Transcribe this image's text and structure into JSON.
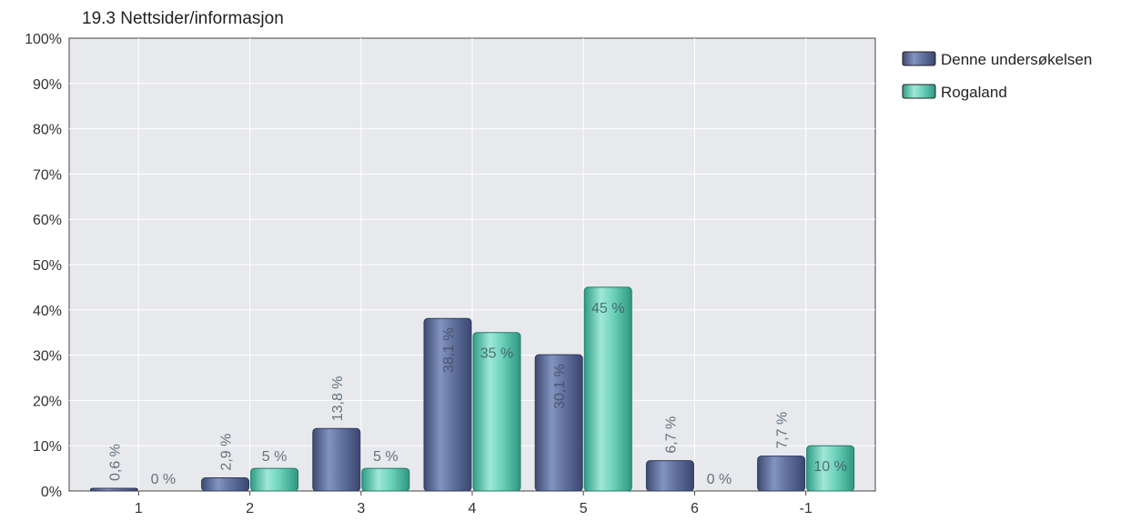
{
  "chart_data": {
    "type": "bar",
    "title": "19.3 Nettsider/informasjon",
    "categories": [
      "1",
      "2",
      "3",
      "4",
      "5",
      "6",
      "-1"
    ],
    "yticks": [
      "0%",
      "10%",
      "20%",
      "30%",
      "40%",
      "50%",
      "60%",
      "70%",
      "80%",
      "90%",
      "100%"
    ],
    "ylim": [
      0,
      100
    ],
    "grid": true,
    "legend_position": "right",
    "series": [
      {
        "name": "Denne undersøkelsen",
        "color": "#5d6e99",
        "values": [
          0.6,
          2.9,
          13.8,
          38.1,
          30.1,
          6.7,
          7.7
        ],
        "labels": [
          "0,6 %",
          "2,9 %",
          "13,8 %",
          "38,1 %",
          "30,1 %",
          "6,7 %",
          "7,7 %"
        ]
      },
      {
        "name": "Rogaland",
        "color": "#5fcbb4",
        "values": [
          0,
          5,
          5,
          35,
          45,
          0,
          10
        ],
        "labels": [
          "0 %",
          "5 %",
          "5 %",
          "35 %",
          "45 %",
          "0 %",
          "10 %"
        ]
      }
    ]
  }
}
